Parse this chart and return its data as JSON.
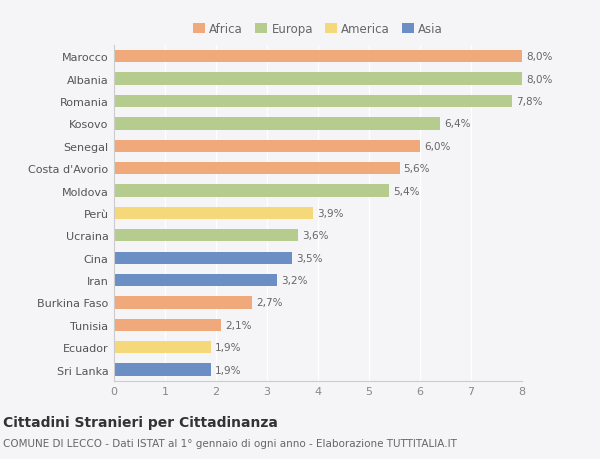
{
  "categories": [
    "Sri Lanka",
    "Ecuador",
    "Tunisia",
    "Burkina Faso",
    "Iran",
    "Cina",
    "Ucraina",
    "Perù",
    "Moldova",
    "Costa d'Avorio",
    "Senegal",
    "Kosovo",
    "Romania",
    "Albania",
    "Marocco"
  ],
  "values": [
    1.9,
    1.9,
    2.1,
    2.7,
    3.2,
    3.5,
    3.6,
    3.9,
    5.4,
    5.6,
    6.0,
    6.4,
    7.8,
    8.0,
    8.0
  ],
  "bar_colors": [
    "#6b8ec4",
    "#f5d87a",
    "#f0a97a",
    "#f0a97a",
    "#6b8ec4",
    "#6b8ec4",
    "#b5cc8e",
    "#f5d87a",
    "#b5cc8e",
    "#f0a97a",
    "#f0a97a",
    "#b5cc8e",
    "#b5cc8e",
    "#b5cc8e",
    "#f0a97a"
  ],
  "labels": [
    "1,9%",
    "1,9%",
    "2,1%",
    "2,7%",
    "3,2%",
    "3,5%",
    "3,6%",
    "3,9%",
    "5,4%",
    "5,6%",
    "6,0%",
    "6,4%",
    "7,8%",
    "8,0%",
    "8,0%"
  ],
  "legend_labels": [
    "Africa",
    "Europa",
    "America",
    "Asia"
  ],
  "legend_colors": [
    "#f0a97a",
    "#b5cc8e",
    "#f5d87a",
    "#6b8ec4"
  ],
  "title": "Cittadini Stranieri per Cittadinanza",
  "subtitle": "COMUNE DI LECCO - Dati ISTAT al 1° gennaio di ogni anno - Elaborazione TUTTITALIA.IT",
  "xlim": [
    0,
    8
  ],
  "xticks": [
    0,
    1,
    2,
    3,
    4,
    5,
    6,
    7,
    8
  ],
  "bg_color": "#f5f5f8",
  "plot_bg_color": "#f5f5f8",
  "grid_color": "#ffffff",
  "bar_height": 0.55,
  "label_fontsize": 7.5,
  "ytick_fontsize": 8,
  "xtick_fontsize": 8,
  "title_fontsize": 10,
  "subtitle_fontsize": 7.5
}
